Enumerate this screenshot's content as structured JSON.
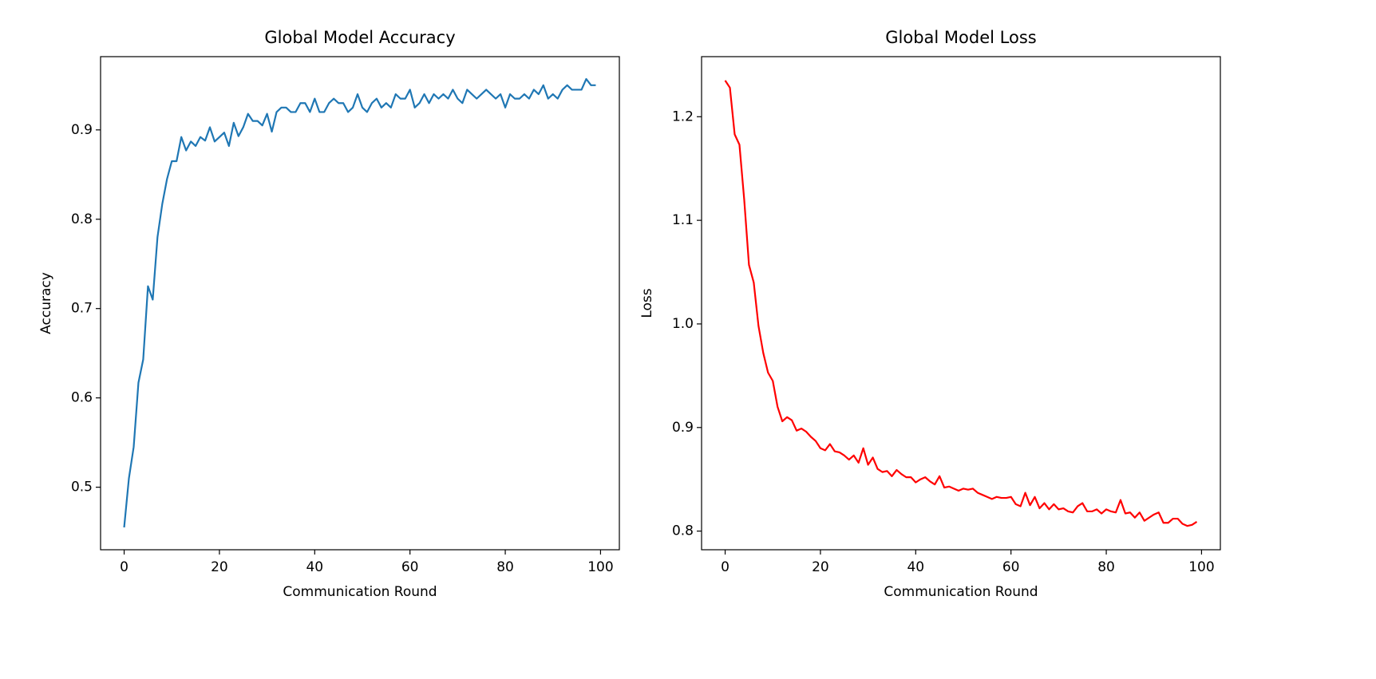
{
  "chart_data": [
    {
      "type": "line",
      "title": "Global Model Accuracy",
      "xlabel": "Communication Round",
      "ylabel": "Accuracy",
      "color": "#1f77b4",
      "x": [
        0,
        1,
        2,
        3,
        4,
        5,
        6,
        7,
        8,
        9,
        10,
        11,
        12,
        13,
        14,
        15,
        16,
        17,
        18,
        19,
        20,
        21,
        22,
        23,
        24,
        25,
        26,
        27,
        28,
        29,
        30,
        31,
        32,
        33,
        34,
        35,
        36,
        37,
        38,
        39,
        40,
        41,
        42,
        43,
        44,
        45,
        46,
        47,
        48,
        49,
        50,
        51,
        52,
        53,
        54,
        55,
        56,
        57,
        58,
        59,
        60,
        61,
        62,
        63,
        64,
        65,
        66,
        67,
        68,
        69,
        70,
        71,
        72,
        73,
        74,
        75,
        76,
        77,
        78,
        79,
        80,
        81,
        82,
        83,
        84,
        85,
        86,
        87,
        88,
        89,
        90,
        91,
        92,
        93,
        94,
        95,
        96,
        97,
        98,
        99
      ],
      "values": [
        0.455,
        0.51,
        0.545,
        0.617,
        0.643,
        0.725,
        0.71,
        0.78,
        0.817,
        0.845,
        0.865,
        0.865,
        0.892,
        0.877,
        0.887,
        0.882,
        0.892,
        0.888,
        0.903,
        0.887,
        0.892,
        0.897,
        0.882,
        0.908,
        0.893,
        0.903,
        0.918,
        0.91,
        0.91,
        0.905,
        0.918,
        0.898,
        0.92,
        0.925,
        0.925,
        0.92,
        0.92,
        0.93,
        0.93,
        0.92,
        0.935,
        0.92,
        0.92,
        0.93,
        0.935,
        0.93,
        0.93,
        0.92,
        0.925,
        0.94,
        0.925,
        0.92,
        0.93,
        0.935,
        0.925,
        0.93,
        0.925,
        0.94,
        0.935,
        0.935,
        0.945,
        0.925,
        0.93,
        0.94,
        0.93,
        0.94,
        0.935,
        0.94,
        0.935,
        0.945,
        0.935,
        0.93,
        0.945,
        0.94,
        0.935,
        0.94,
        0.945,
        0.94,
        0.935,
        0.94,
        0.925,
        0.94,
        0.935,
        0.935,
        0.94,
        0.935,
        0.945,
        0.94,
        0.95,
        0.935,
        0.94,
        0.935,
        0.945,
        0.95,
        0.945,
        0.945,
        0.945,
        0.957,
        0.95,
        0.95
      ],
      "xlim": [
        -4.95,
        103.95
      ],
      "xticks": [
        0,
        20,
        40,
        60,
        80,
        100
      ],
      "ylim": [
        0.43,
        0.982
      ],
      "yticks": [
        0.5,
        0.6,
        0.7,
        0.8,
        0.9
      ]
    },
    {
      "type": "line",
      "title": "Global Model Loss",
      "xlabel": "Communication Round",
      "ylabel": "Loss",
      "color": "#ff0000",
      "x": [
        0,
        1,
        2,
        3,
        4,
        5,
        6,
        7,
        8,
        9,
        10,
        11,
        12,
        13,
        14,
        15,
        16,
        17,
        18,
        19,
        20,
        21,
        22,
        23,
        24,
        25,
        26,
        27,
        28,
        29,
        30,
        31,
        32,
        33,
        34,
        35,
        36,
        37,
        38,
        39,
        40,
        41,
        42,
        43,
        44,
        45,
        46,
        47,
        48,
        49,
        50,
        51,
        52,
        53,
        54,
        55,
        56,
        57,
        58,
        59,
        60,
        61,
        62,
        63,
        64,
        65,
        66,
        67,
        68,
        69,
        70,
        71,
        72,
        73,
        74,
        75,
        76,
        77,
        78,
        79,
        80,
        81,
        82,
        83,
        84,
        85,
        86,
        87,
        88,
        89,
        90,
        91,
        92,
        93,
        94,
        95,
        96,
        97,
        98,
        99
      ],
      "values": [
        1.235,
        1.228,
        1.183,
        1.173,
        1.12,
        1.057,
        1.04,
        0.998,
        0.972,
        0.953,
        0.945,
        0.92,
        0.906,
        0.91,
        0.907,
        0.897,
        0.899,
        0.896,
        0.891,
        0.887,
        0.88,
        0.878,
        0.884,
        0.877,
        0.876,
        0.873,
        0.869,
        0.873,
        0.866,
        0.88,
        0.864,
        0.871,
        0.86,
        0.857,
        0.858,
        0.853,
        0.859,
        0.855,
        0.852,
        0.852,
        0.847,
        0.85,
        0.852,
        0.848,
        0.845,
        0.853,
        0.842,
        0.843,
        0.841,
        0.839,
        0.841,
        0.84,
        0.841,
        0.837,
        0.835,
        0.833,
        0.831,
        0.833,
        0.832,
        0.832,
        0.833,
        0.826,
        0.824,
        0.837,
        0.825,
        0.833,
        0.822,
        0.827,
        0.821,
        0.826,
        0.821,
        0.822,
        0.819,
        0.818,
        0.824,
        0.827,
        0.819,
        0.819,
        0.821,
        0.817,
        0.821,
        0.819,
        0.818,
        0.83,
        0.817,
        0.818,
        0.813,
        0.818,
        0.81,
        0.813,
        0.816,
        0.818,
        0.808,
        0.808,
        0.812,
        0.812,
        0.807,
        0.805,
        0.806,
        0.809
      ],
      "xlim": [
        -4.95,
        103.95
      ],
      "xticks": [
        0,
        20,
        40,
        60,
        80,
        100
      ],
      "ylim": [
        0.782,
        1.258
      ],
      "yticks": [
        0.8,
        0.9,
        {
          "value": 1,
          "label": "1.0"
        },
        1.1,
        1.2
      ]
    }
  ]
}
